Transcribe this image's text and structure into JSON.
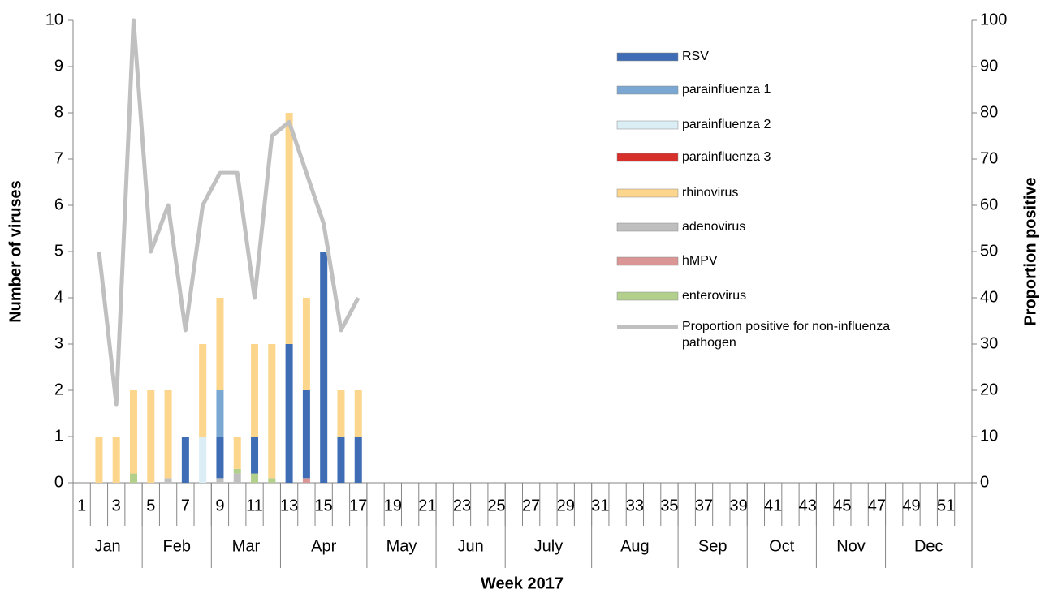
{
  "chart_data": {
    "type": "bar",
    "x_label": "Week 2017",
    "y_label": "Number of viruses",
    "y2_label": "Proportion positive",
    "categories": [
      "1",
      null,
      "3",
      null,
      "5",
      null,
      "7",
      null,
      "9",
      null,
      "11",
      null,
      "13",
      null,
      "15",
      null,
      "17",
      null,
      "19",
      null,
      "21",
      null,
      "23",
      null,
      "25",
      null,
      "27",
      null,
      "29",
      null,
      "31",
      null,
      "33",
      null,
      "35",
      null,
      "37",
      null,
      "39",
      null,
      "41",
      null,
      "43",
      null,
      "45",
      null,
      "47",
      null,
      "49",
      null,
      "51",
      null
    ],
    "month_groups": [
      {
        "label": "Jan",
        "span": 4
      },
      {
        "label": "Feb",
        "span": 4
      },
      {
        "label": "Mar",
        "span": 4
      },
      {
        "label": "Apr",
        "span": 5
      },
      {
        "label": "May",
        "span": 4
      },
      {
        "label": "Jun",
        "span": 4
      },
      {
        "label": "July",
        "span": 5
      },
      {
        "label": "Aug",
        "span": 5
      },
      {
        "label": "Sep",
        "span": 4
      },
      {
        "label": "Oct",
        "span": 4
      },
      {
        "label": "Nov",
        "span": 4
      },
      {
        "label": "Dec",
        "span": 5
      }
    ],
    "ylim": [
      0,
      10
    ],
    "yticks": [
      0,
      1,
      2,
      3,
      4,
      5,
      6,
      7,
      8,
      9,
      10
    ],
    "y2lim": [
      0,
      100
    ],
    "y2ticks": [
      0,
      10,
      20,
      30,
      40,
      50,
      60,
      70,
      80,
      90,
      100
    ],
    "stacked": true,
    "series": [
      {
        "name": "RSV",
        "color": "#3f6db5",
        "values": [
          0,
          0,
          0,
          0,
          0,
          0,
          1,
          0,
          0.9,
          0,
          0.8,
          0,
          3,
          1.9,
          5,
          1,
          1,
          null,
          null,
          null,
          null,
          null,
          null,
          null,
          null,
          null,
          null,
          null,
          null,
          null,
          null,
          null,
          null,
          null,
          null,
          null,
          null,
          null,
          null,
          null,
          null,
          null,
          null,
          null,
          null,
          null,
          null,
          null,
          null,
          null,
          null,
          null
        ]
      },
      {
        "name": "parainfluenza 1",
        "color": "#7aa8d3",
        "values": [
          0,
          0,
          0,
          0,
          0,
          0,
          0,
          0,
          1,
          0,
          0,
          0,
          0,
          0,
          0,
          0,
          0,
          null,
          null,
          null,
          null,
          null,
          null,
          null,
          null,
          null,
          null,
          null,
          null,
          null,
          null,
          null,
          null,
          null,
          null,
          null,
          null,
          null,
          null,
          null,
          null,
          null,
          null,
          null,
          null,
          null,
          null,
          null,
          null,
          null,
          null,
          null
        ]
      },
      {
        "name": "parainfluenza 2",
        "color": "#dbeef5",
        "values": [
          0,
          0,
          0,
          0,
          0,
          0,
          0,
          1,
          0,
          0,
          0,
          0,
          0,
          0,
          0,
          0,
          0,
          null,
          null,
          null,
          null,
          null,
          null,
          null,
          null,
          null,
          null,
          null,
          null,
          null,
          null,
          null,
          null,
          null,
          null,
          null,
          null,
          null,
          null,
          null,
          null,
          null,
          null,
          null,
          null,
          null,
          null,
          null,
          null,
          null,
          null,
          null
        ]
      },
      {
        "name": "parainfluenza 3",
        "color": "#d7302a",
        "values": [
          0,
          0,
          0,
          0,
          0,
          0,
          0,
          0,
          0,
          0,
          0,
          0,
          0,
          0,
          0,
          0,
          0,
          null,
          null,
          null,
          null,
          null,
          null,
          null,
          null,
          null,
          null,
          null,
          null,
          null,
          null,
          null,
          null,
          null,
          null,
          null,
          null,
          null,
          null,
          null,
          null,
          null,
          null,
          null,
          null,
          null,
          null,
          null,
          null,
          null,
          null,
          null
        ]
      },
      {
        "name": "rhinovirus",
        "color": "#fcd68c",
        "values": [
          0,
          1,
          1,
          1.8,
          2,
          1.9,
          0,
          2,
          2,
          0.7,
          2,
          2.9,
          5,
          2,
          0,
          1,
          1,
          null,
          null,
          null,
          null,
          null,
          null,
          null,
          null,
          null,
          null,
          null,
          null,
          null,
          null,
          null,
          null,
          null,
          null,
          null,
          null,
          null,
          null,
          null,
          null,
          null,
          null,
          null,
          null,
          null,
          null,
          null,
          null,
          null,
          null,
          null
        ]
      },
      {
        "name": "adenovirus",
        "color": "#bfbfbf",
        "values": [
          0,
          0,
          0,
          0,
          0,
          0.1,
          0,
          0,
          0.1,
          0.2,
          0,
          0,
          0,
          0,
          0,
          0,
          0,
          null,
          null,
          null,
          null,
          null,
          null,
          null,
          null,
          null,
          null,
          null,
          null,
          null,
          null,
          null,
          null,
          null,
          null,
          null,
          null,
          null,
          null,
          null,
          null,
          null,
          null,
          null,
          null,
          null,
          null,
          null,
          null,
          null,
          null,
          null
        ]
      },
      {
        "name": "hMPV",
        "color": "#d99694",
        "values": [
          0,
          0,
          0,
          0,
          0,
          0,
          0,
          0,
          0,
          0,
          0,
          0,
          0,
          0.1,
          0,
          0,
          0,
          null,
          null,
          null,
          null,
          null,
          null,
          null,
          null,
          null,
          null,
          null,
          null,
          null,
          null,
          null,
          null,
          null,
          null,
          null,
          null,
          null,
          null,
          null,
          null,
          null,
          null,
          null,
          null,
          null,
          null,
          null,
          null,
          null,
          null,
          null
        ]
      },
      {
        "name": "enterovirus",
        "color": "#b3cf8c",
        "values": [
          0,
          0,
          0,
          0.2,
          0,
          0,
          0,
          0,
          0,
          0.1,
          0.2,
          0.1,
          0,
          0,
          0,
          0,
          0,
          null,
          null,
          null,
          null,
          null,
          null,
          null,
          null,
          null,
          null,
          null,
          null,
          null,
          null,
          null,
          null,
          null,
          null,
          null,
          null,
          null,
          null,
          null,
          null,
          null,
          null,
          null,
          null,
          null,
          null,
          null,
          null,
          null,
          null,
          null
        ]
      },
      {
        "name": "Proportion positive for non-influenza pathogen",
        "color": "#c0c0c0",
        "type": "line",
        "axis": "y2",
        "values": [
          null,
          50,
          17,
          100,
          50,
          60,
          33,
          60,
          67,
          67,
          40,
          75,
          78,
          67,
          56,
          33,
          40,
          null,
          null,
          null,
          null,
          null,
          null,
          null,
          null,
          null,
          null,
          null,
          null,
          null,
          null,
          null,
          null,
          null,
          null,
          null,
          null,
          null,
          null,
          null,
          null,
          null,
          null,
          null,
          null,
          null,
          null,
          null,
          null,
          null,
          null,
          null
        ]
      }
    ]
  }
}
